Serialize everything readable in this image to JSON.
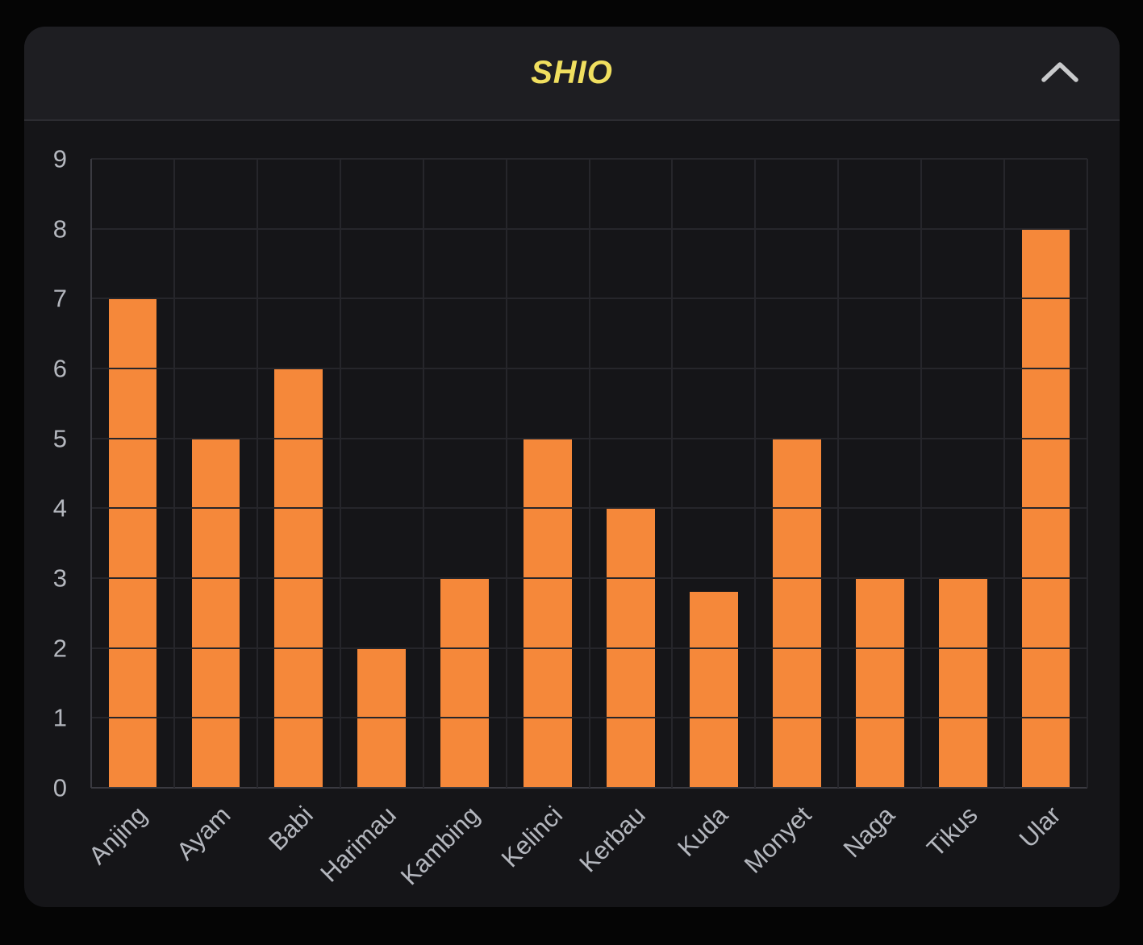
{
  "window": {
    "background_color": "#050505"
  },
  "panel": {
    "header": {
      "title": "SHIO",
      "title_color": "#f0df5f",
      "collapse_icon": "chevron-up-icon",
      "background_color": "#1e1e22"
    },
    "body_background_color": "#151518"
  },
  "chart_data": {
    "type": "bar",
    "title": "SHIO",
    "categories": [
      "Anjing",
      "Ayam",
      "Babi",
      "Harimau",
      "Kambing",
      "Kelinci",
      "Kerbau",
      "Kuda",
      "Monyet",
      "Naga",
      "Tikus",
      "Ular"
    ],
    "values": [
      7,
      5,
      6,
      2,
      3,
      5,
      4,
      2.8,
      5,
      3,
      3,
      8
    ],
    "xlabel": "",
    "ylabel": "",
    "ylim": [
      0,
      9
    ],
    "y_ticks": [
      0,
      1,
      2,
      3,
      4,
      5,
      6,
      7,
      8,
      9
    ],
    "grid": true,
    "legend": false,
    "bar_color": "#f5883a",
    "gridline_color": "#26262b",
    "axis_line_color": "#3a3a41",
    "tick_label_color": "#b4b7be",
    "x_label_rotation_deg": -45
  }
}
